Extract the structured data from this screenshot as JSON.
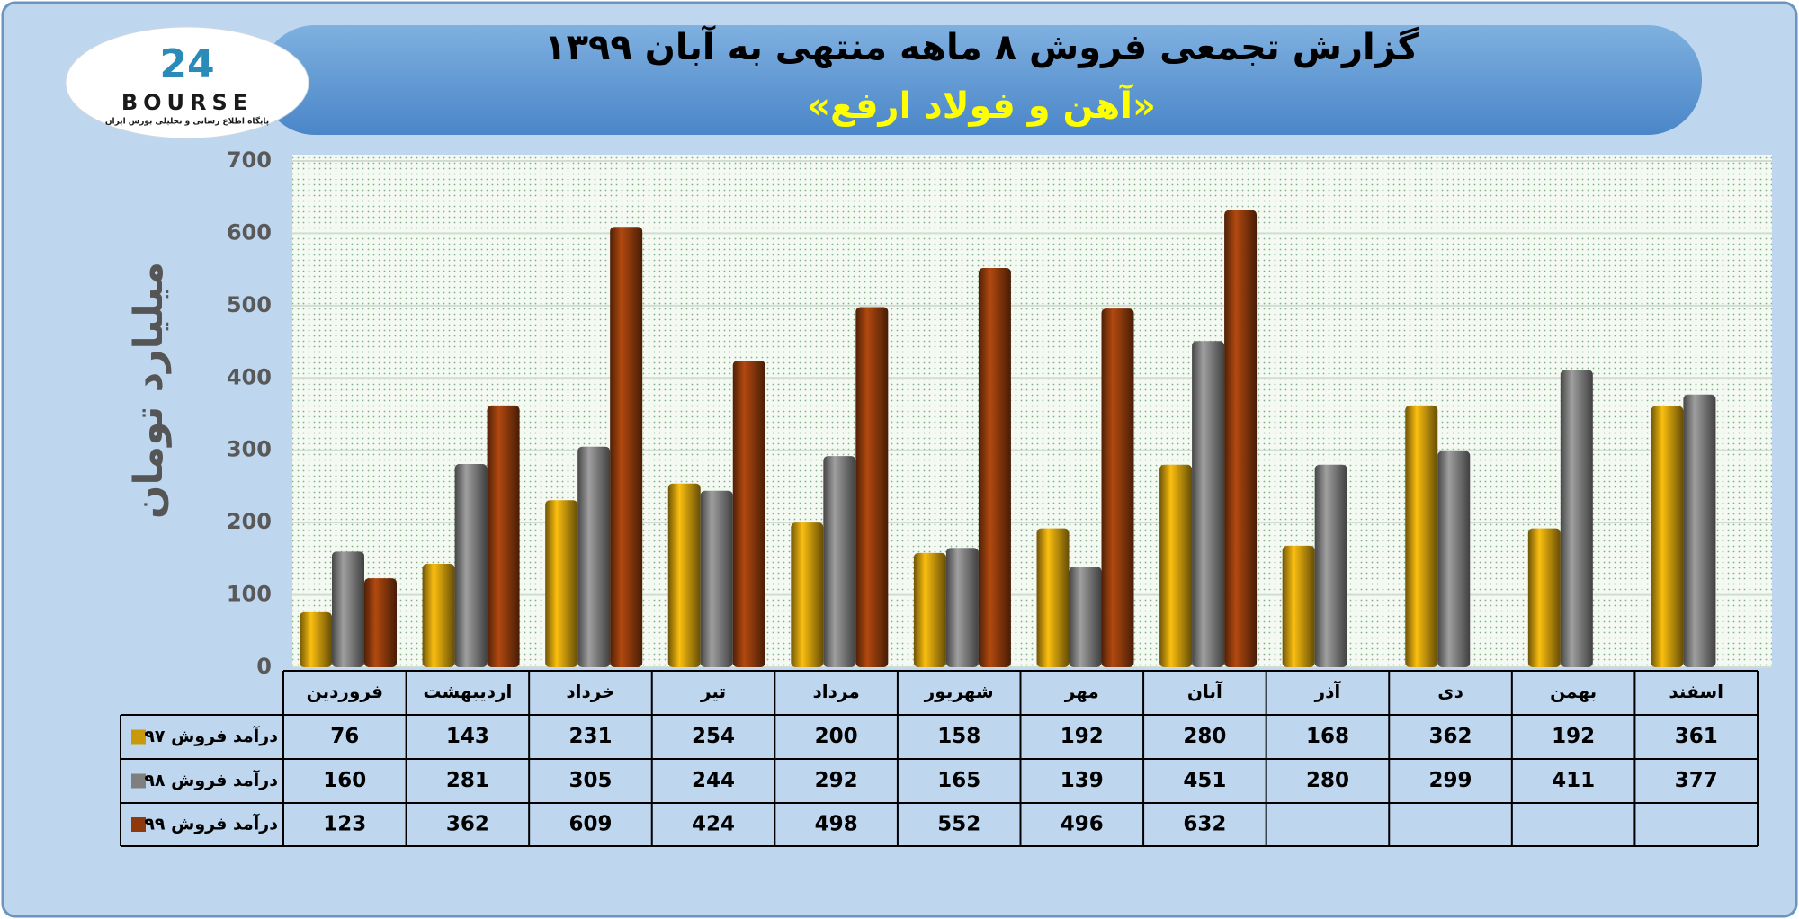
{
  "logo": {
    "mark": "24",
    "text": "BOURSE",
    "subtitle": "پایگاه اطلاع رسانی و تحلیلی بورس ایران"
  },
  "chart_data": {
    "type": "bar",
    "title": "گزارش تجمعی فروش ۸ ماهه منتهی به آبان ۱۳۹۹",
    "subtitle": "«آهن و فولاد ارفع»",
    "y_label": "میلیارد تومان",
    "categories": [
      "فروردین",
      "اردیبهشت",
      "خرداد",
      "تیر",
      "مرداد",
      "شهریور",
      "مهر",
      "آبان",
      "آذر",
      "دی",
      "بهمن",
      "اسفند"
    ],
    "series": [
      {
        "name": "درآمد فروش ۹۷",
        "color": "#c9990c",
        "values": [
          76,
          143,
          231,
          254,
          200,
          158,
          192,
          280,
          168,
          362,
          192,
          361
        ]
      },
      {
        "name": "درآمد فروش ۹۸",
        "color": "#7f7f7f",
        "values": [
          160,
          281,
          305,
          244,
          292,
          165,
          139,
          451,
          280,
          299,
          411,
          377
        ]
      },
      {
        "name": "درآمد فروش ۹۹",
        "color": "#8e3a0c",
        "values": [
          123,
          362,
          609,
          424,
          498,
          552,
          496,
          632,
          null,
          null,
          null,
          null
        ]
      }
    ],
    "ylim": [
      0,
      700
    ],
    "yticks": [
      0,
      100,
      200,
      300,
      400,
      500,
      600,
      700
    ],
    "grid": true
  }
}
